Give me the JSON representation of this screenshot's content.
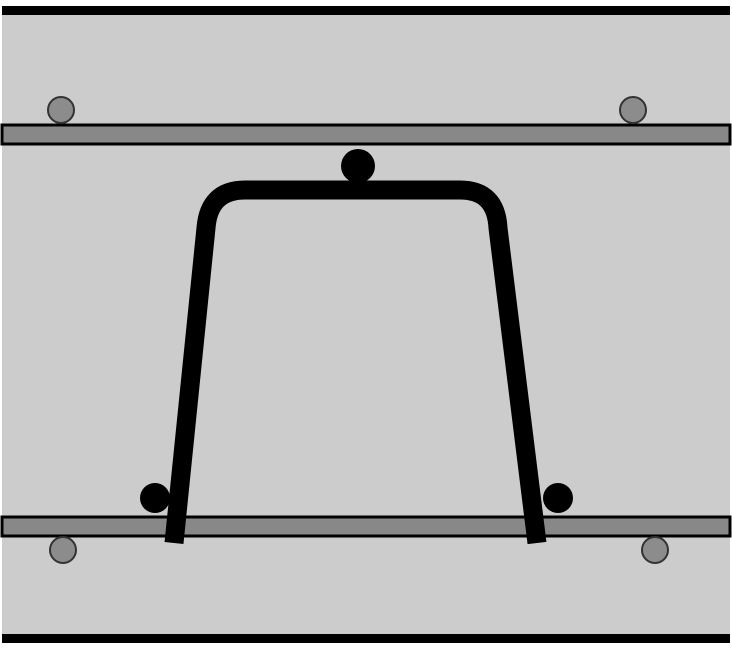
{
  "diagram": {
    "colors": {
      "background": "#cccccc",
      "border": "#000000",
      "slab_face": "#000000",
      "longitudinal_bar": "#888888",
      "longitudinal_bar_outline": "#000000",
      "cross_bar_fill": "#8c8c8c",
      "cross_bar_outline": "#333333",
      "stirrup": "#000000",
      "stirrup_bar_fill": "#000000"
    },
    "elements": {
      "top_face": "slab-top-face",
      "bottom_face": "slab-bottom-face",
      "top_longitudinal_bar": "top-longitudinal-bar",
      "bottom_longitudinal_bar": "bottom-longitudinal-bar",
      "stirrup": "trapezoid-stirrup",
      "stirrup_bars": [
        "stirrup-top-bar",
        "stirrup-left-bar",
        "stirrup-right-bar"
      ],
      "cross_bars": [
        "top-left-cross-bar",
        "top-right-cross-bar",
        "bottom-left-cross-bar",
        "bottom-right-cross-bar"
      ]
    }
  }
}
